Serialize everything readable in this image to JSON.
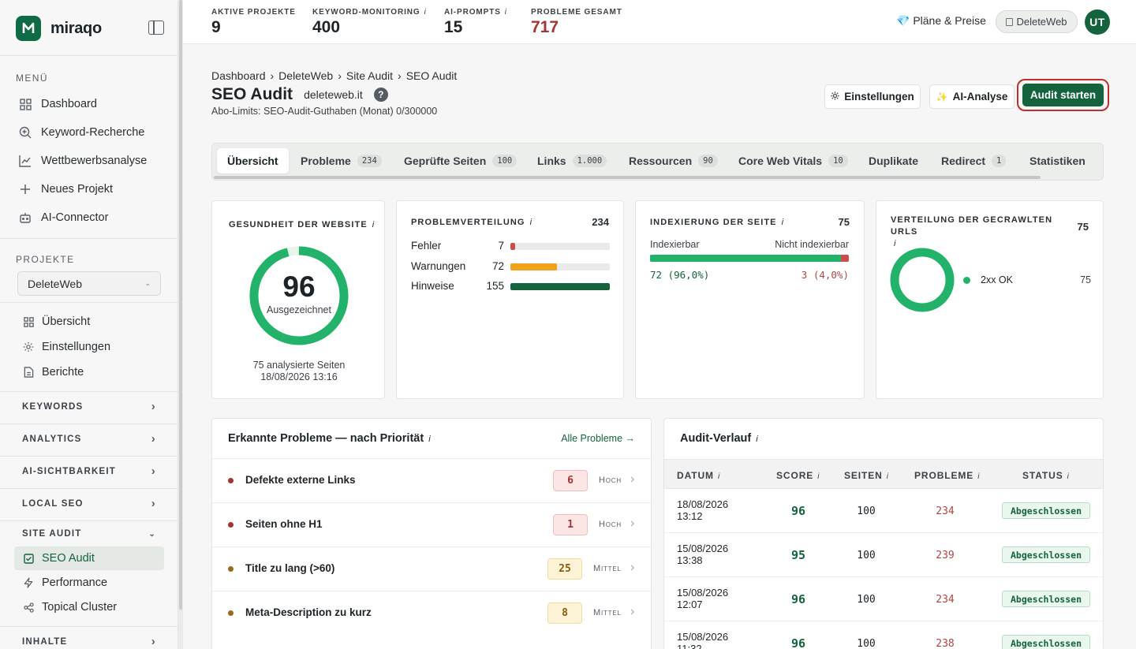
{
  "app": {
    "name": "miraqo"
  },
  "sidebar": {
    "menu_label": "MENÜ",
    "menu": [
      {
        "label": "Dashboard",
        "icon": "grid-icon"
      },
      {
        "label": "Keyword-Recherche",
        "icon": "search-plus-icon"
      },
      {
        "label": "Wettbewerbsanalyse",
        "icon": "line-chart-icon"
      },
      {
        "label": "Neues Projekt",
        "icon": "plus-icon"
      },
      {
        "label": "AI-Connector",
        "icon": "robot-icon"
      }
    ],
    "projects_label": "PROJEKTE",
    "project_selected": "DeleteWeb",
    "project_items": [
      {
        "label": "Übersicht",
        "icon": "grid-icon"
      },
      {
        "label": "Einstellungen",
        "icon": "gear-icon"
      },
      {
        "label": "Berichte",
        "icon": "document-icon"
      }
    ],
    "groups": [
      "KEYWORDS",
      "ANALYTICS",
      "AI-SICHTBARKEIT",
      "LOCAL SEO"
    ],
    "site_audit_label": "SITE AUDIT",
    "site_audit_items": [
      {
        "label": "SEO Audit",
        "icon": "checkbox-icon",
        "active": true
      },
      {
        "label": "Performance",
        "icon": "bolt-icon"
      },
      {
        "label": "Topical Cluster",
        "icon": "share-icon"
      }
    ],
    "inhalte_label": "INHALTE"
  },
  "topbar": {
    "stats": [
      {
        "label": "AKTIVE PROJEKTE",
        "value": "9",
        "info": ""
      },
      {
        "label": "KEYWORD-MONITORING",
        "value": "400",
        "info": "i"
      },
      {
        "label": "AI-PROMPTS",
        "value": "15",
        "info": "i"
      },
      {
        "label": "PROBLEME GESAMT",
        "value": "717",
        "info": ""
      }
    ],
    "plans_label": "💎 Pläne & Preise",
    "workspace_label": "DeleteWeb",
    "avatar_initials": "UT"
  },
  "header": {
    "breadcrumb": [
      "Dashboard",
      "DeleteWeb",
      "Site Audit",
      "SEO Audit"
    ],
    "title": "SEO Audit",
    "domain": "deleteweb.it",
    "help": "?",
    "limits": "Abo-Limits: SEO-Audit-Guthaben (Monat) 0/300000",
    "settings_button": "Einstellungen",
    "ai_button": "AI-Analyse",
    "start_button": "Audit starten"
  },
  "tabs": [
    {
      "label": "Übersicht",
      "count": ""
    },
    {
      "label": "Probleme",
      "count": "234"
    },
    {
      "label": "Geprüfte Seiten",
      "count": "100"
    },
    {
      "label": "Links",
      "count": "1.000"
    },
    {
      "label": "Ressourcen",
      "count": "90"
    },
    {
      "label": "Core Web Vitals",
      "count": "10"
    },
    {
      "label": "Duplikate",
      "count": ""
    },
    {
      "label": "Redirect",
      "count": "1"
    },
    {
      "label": "Statistiken",
      "count": ""
    }
  ],
  "health": {
    "title": "GESUNDHEIT DER WEBSITE",
    "score": "96",
    "score_value": 96,
    "rating": "Ausgezeichnet",
    "pages": "75 analysierte Seiten",
    "date": "18/08/2026 13:16"
  },
  "distribution": {
    "title": "PROBLEMVERTEILUNG",
    "total": "234",
    "rows": [
      {
        "label": "Fehler",
        "count": "7",
        "value": 7,
        "color": "#cf4a4a"
      },
      {
        "label": "Warnungen",
        "count": "72",
        "value": 72,
        "color": "#f0a21a"
      },
      {
        "label": "Hinweise",
        "count": "155",
        "value": 155,
        "color": "#14633d"
      }
    ]
  },
  "indexing": {
    "title": "INDEXIERUNG DER SEITE",
    "total": "75",
    "label_left": "Indexierbar",
    "label_right": "Nicht indexierbar",
    "value_left": "72 (96,0%)",
    "value_right": "3 (4,0%)",
    "fraction": 0.96
  },
  "crawled": {
    "title": "VERTEILUNG DER GECRAWLTEN URLS",
    "total": "75",
    "legend": [
      {
        "label": "2xx OK",
        "value": "75",
        "color": "#23b26a"
      }
    ]
  },
  "problems": {
    "title": "Erkannte Probleme — nach Priorität",
    "link": "Alle Probleme →",
    "rows": [
      {
        "name": "Defekte externe Links",
        "count": "6",
        "level": "Hoch",
        "dot": "#a73232",
        "bg": "#fbe5e5",
        "border": "#f0bdbd",
        "fg": "#a73232"
      },
      {
        "name": "Seiten ohne H1",
        "count": "1",
        "level": "Hoch",
        "dot": "#a73232",
        "bg": "#fbe5e5",
        "border": "#f0bdbd",
        "fg": "#a73232"
      },
      {
        "name": "Title zu lang (>60)",
        "count": "25",
        "level": "Mittel",
        "dot": "#9a6a1c",
        "bg": "#fdf3d6",
        "border": "#f0dc9e",
        "fg": "#8a5a10"
      },
      {
        "name": "Meta-Description zu kurz",
        "count": "8",
        "level": "Mittel",
        "dot": "#9a6a1c",
        "bg": "#fdf3d6",
        "border": "#f0dc9e",
        "fg": "#8a5a10"
      }
    ]
  },
  "audit_history": {
    "title": "Audit-Verlauf",
    "columns": [
      "DATUM",
      "SCORE",
      "SEITEN",
      "PROBLEME",
      "STATUS"
    ],
    "rows": [
      {
        "date": "18/08/2026 13:12",
        "score": "96",
        "pages": "100",
        "problems": "234",
        "status": "Abgeschlossen"
      },
      {
        "date": "15/08/2026 13:38",
        "score": "95",
        "pages": "100",
        "problems": "239",
        "status": "Abgeschlossen"
      },
      {
        "date": "15/08/2026 12:07",
        "score": "96",
        "pages": "100",
        "problems": "234",
        "status": "Abgeschlossen"
      },
      {
        "date": "15/08/2026 11:32",
        "score": "96",
        "pages": "100",
        "problems": "238",
        "status": "Abgeschlossen"
      }
    ]
  }
}
